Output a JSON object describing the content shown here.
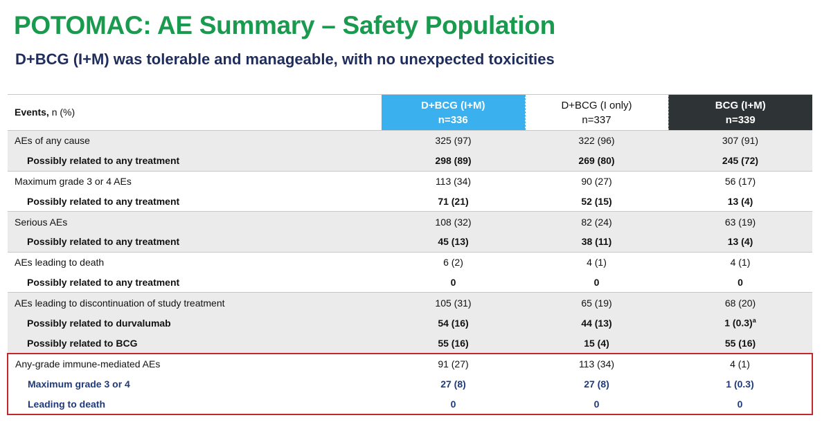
{
  "header": {
    "title": "POTOMAC: AE Summary – Safety Population",
    "subtitle": "D+BCG (I+M) was tolerable and manageable, with no unexpected toxicities"
  },
  "table": {
    "header": {
      "label_bold": "Events,",
      "label": "n (%)",
      "columns": [
        {
          "name": "D+BCG (I+M)",
          "n": "n=336"
        },
        {
          "name": "D+BCG (I only)",
          "n": "n=337"
        },
        {
          "name": "BCG (I+M)",
          "n": "n=339"
        }
      ]
    },
    "groups": [
      {
        "main": {
          "label": "AEs of any cause",
          "values": [
            "325 (97)",
            "322 (96)",
            "307 (91)"
          ]
        },
        "sub": [
          {
            "label": "Possibly related to any treatment",
            "values": [
              "298 (89)",
              "269 (80)",
              "245 (72)"
            ]
          }
        ]
      },
      {
        "main": {
          "label": "Maximum grade 3 or 4 AEs",
          "values": [
            "113 (34)",
            "90 (27)",
            "56 (17)"
          ]
        },
        "sub": [
          {
            "label": "Possibly related to any treatment",
            "values": [
              "71 (21)",
              "52 (15)",
              "13 (4)"
            ]
          }
        ]
      },
      {
        "main": {
          "label": "Serious AEs",
          "values": [
            "108 (32)",
            "82 (24)",
            "63 (19)"
          ]
        },
        "sub": [
          {
            "label": "Possibly related to any treatment",
            "values": [
              "45 (13)",
              "38 (11)",
              "13 (4)"
            ]
          }
        ]
      },
      {
        "main": {
          "label": "AEs leading to death",
          "values": [
            "6 (2)",
            "4 (1)",
            "4 (1)"
          ]
        },
        "sub": [
          {
            "label": "Possibly related to any treatment",
            "values": [
              "0",
              "0",
              "0"
            ]
          }
        ]
      },
      {
        "main": {
          "label": "AEs leading to discontinuation of study treatment",
          "values": [
            "105 (31)",
            "65 (19)",
            "68 (20)"
          ]
        },
        "sub": [
          {
            "label": "Possibly related to durvalumab",
            "values": [
              "54 (16)",
              "44 (13)",
              {
                "text": "1 (0.3)",
                "note": "a"
              }
            ]
          },
          {
            "label": "Possibly related to BCG",
            "values": [
              "55 (16)",
              "15 (4)",
              "55 (16)"
            ]
          }
        ]
      },
      {
        "main": {
          "label": "Any-grade immune-mediated AEs",
          "values": [
            "91 (27)",
            "113 (34)",
            "4 (1)"
          ]
        },
        "sub": [
          {
            "label": "Maximum grade 3 or 4",
            "values": [
              "27 (8)",
              "27 (8)",
              "1 (0.3)"
            ]
          },
          {
            "label": "Leading to death",
            "values": [
              "0",
              "0",
              "0"
            ]
          }
        ]
      }
    ]
  }
}
